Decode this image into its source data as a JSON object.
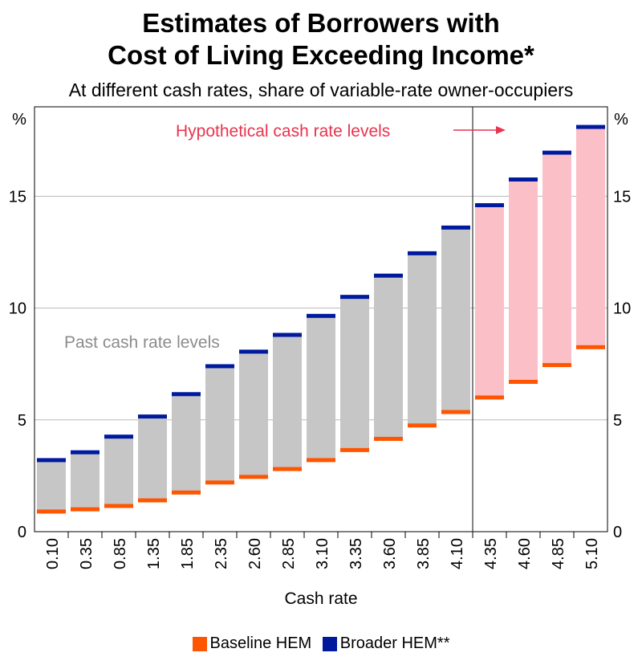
{
  "title_line1": "Estimates of Borrowers with",
  "title_line2": "Cost of Living Exceeding Income*",
  "subtitle": "At different cash rates, share of variable-rate owner-occupiers",
  "chart_data": {
    "type": "bar",
    "title": "Estimates of Borrowers with Cost of Living Exceeding Income*",
    "subtitle": "At different cash rates, share of variable-rate owner-occupiers",
    "xlabel": "Cash rate",
    "ylabel": "%",
    "ylim": [
      0,
      19
    ],
    "yticks": [
      0,
      5,
      10,
      15
    ],
    "grid": true,
    "categories": [
      "0.10",
      "0.35",
      "0.85",
      "1.35",
      "1.85",
      "2.35",
      "2.60",
      "2.85",
      "3.10",
      "3.35",
      "3.60",
      "3.85",
      "4.10",
      "4.35",
      "4.60",
      "4.85",
      "5.10"
    ],
    "series": [
      {
        "name": "Baseline HEM",
        "values": [
          0.9,
          1.0,
          1.15,
          1.4,
          1.75,
          2.2,
          2.45,
          2.8,
          3.2,
          3.65,
          4.15,
          4.75,
          5.35,
          6.0,
          6.7,
          7.45,
          8.25
        ]
      },
      {
        "name": "Broader HEM**",
        "values": [
          3.2,
          3.55,
          4.25,
          5.15,
          6.15,
          7.4,
          8.05,
          8.8,
          9.65,
          10.5,
          11.45,
          12.45,
          13.6,
          14.6,
          15.75,
          16.95,
          18.1
        ]
      }
    ],
    "annotations": {
      "past": "Past cash rate levels",
      "hypothetical": "Hypothetical cash rate levels",
      "hypothetical_start_index": 13
    },
    "colors": {
      "baseline": "#ff5500",
      "broader": "#001a9e",
      "past_fill": "#c6c6c6",
      "hypothetical_fill": "#fbc0c7",
      "annotation_past": "#8c8c8c",
      "annotation_hypothetical": "#e8344e",
      "grid": "#b8b8b8"
    }
  },
  "legend": [
    {
      "label": "Baseline HEM",
      "color": "#ff5500"
    },
    {
      "label": "Broader HEM**",
      "color": "#001a9e"
    }
  ]
}
